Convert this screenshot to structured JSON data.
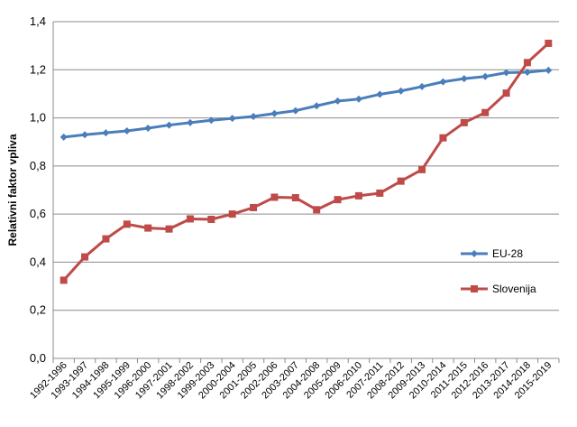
{
  "chart_data": {
    "type": "line",
    "title": "",
    "xlabel": "",
    "ylabel": "Relativni faktor vpliva",
    "ylim": [
      0,
      1.4
    ],
    "yticks": [
      0,
      0.2,
      0.4,
      0.6,
      0.8,
      1.0,
      1.2,
      1.4
    ],
    "ytick_labels": [
      "0,0",
      "0,2",
      "0,4",
      "0,6",
      "0,8",
      "1,0",
      "1,2",
      "1,4"
    ],
    "grid": "horizontal",
    "legend_position": "right",
    "categories": [
      "1992-1996",
      "1993-1997",
      "1994-1998",
      "1995-1999",
      "1996-2000",
      "1997-2001",
      "1998-2002",
      "1999-2003",
      "2000-2004",
      "2001-2005",
      "2002-2006",
      "2003-2007",
      "2004-2008",
      "2005-2009",
      "2006-2010",
      "2007-2011",
      "2008-2012",
      "2009-2013",
      "2010-2014",
      "2011-2015",
      "2012-2016",
      "2013-2017",
      "2014-2018",
      "2015-2019"
    ],
    "series": [
      {
        "name": "EU-28",
        "color": "#4a7ebb",
        "marker": "diamond",
        "values": [
          0.92,
          0.93,
          0.938,
          0.946,
          0.957,
          0.97,
          0.98,
          0.99,
          0.998,
          1.006,
          1.018,
          1.03,
          1.05,
          1.07,
          1.078,
          1.098,
          1.112,
          1.13,
          1.15,
          1.163,
          1.172,
          1.188,
          1.19,
          1.198
        ]
      },
      {
        "name": "Slovenija",
        "color": "#be4b48",
        "marker": "square",
        "values": [
          0.325,
          0.422,
          0.497,
          0.558,
          0.542,
          0.538,
          0.58,
          0.578,
          0.6,
          0.627,
          0.67,
          0.668,
          0.618,
          0.66,
          0.676,
          0.687,
          0.737,
          0.785,
          0.917,
          0.98,
          1.022,
          1.103,
          1.23,
          1.31
        ]
      }
    ]
  }
}
